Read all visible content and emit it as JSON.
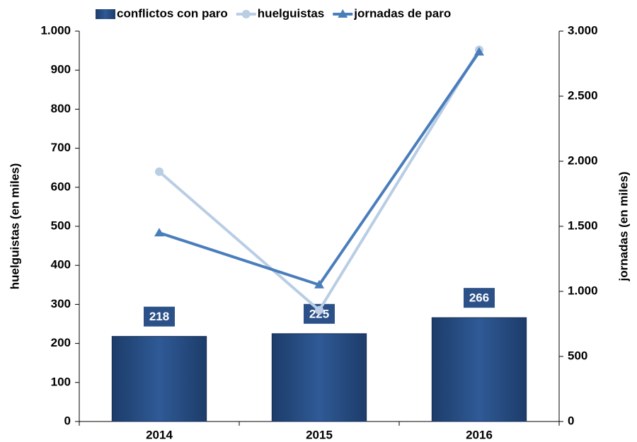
{
  "chart_data": {
    "type": "combo",
    "categories": [
      "2014",
      "2015",
      "2016"
    ],
    "series": [
      {
        "name": "conflictos con paro",
        "type": "bar",
        "color": "#2b5188",
        "values": [
          218,
          225,
          266
        ],
        "axis": "y"
      },
      {
        "name": "huelguistas",
        "type": "line",
        "marker": "circle",
        "color": "#b9cde5",
        "values": [
          640,
          285,
          952
        ],
        "axis": "y"
      },
      {
        "name": "jornadas de paro",
        "type": "line",
        "marker": "triangle",
        "color": "#4a7ebb",
        "values": [
          1450,
          1050,
          2840
        ],
        "axis": "y2"
      }
    ],
    "y_label": "huelguistas (en miles)",
    "y2_label": "jornadas (en miles)",
    "ylim": [
      0,
      1000
    ],
    "yticks": [
      0,
      100,
      200,
      300,
      400,
      500,
      600,
      700,
      800,
      900,
      {
        "value": 1000,
        "label": "1.000"
      }
    ],
    "y2lim": [
      0,
      3000
    ],
    "y2ticks": [
      0,
      500,
      {
        "value": 1000,
        "label": "1.000"
      },
      {
        "value": 1500,
        "label": "1.500"
      },
      {
        "value": 2000,
        "label": "2.000"
      },
      {
        "value": 2500,
        "label": "2.500"
      },
      {
        "value": 3000,
        "label": "3.000"
      }
    ],
    "legend": "top",
    "grid": false
  }
}
